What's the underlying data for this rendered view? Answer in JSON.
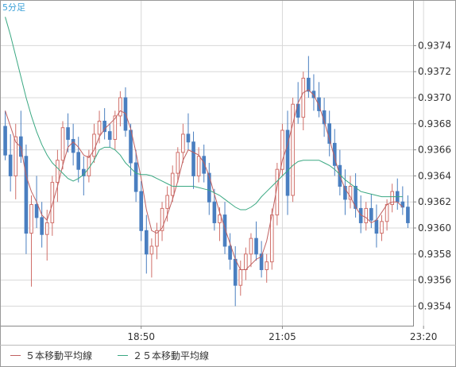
{
  "timeframe_label": "5分足",
  "chart_data": {
    "type": "candlestick",
    "x_tick_labels": [
      "18:50",
      "21:05",
      "23:20"
    ],
    "x_tick_positions": [
      26,
      53,
      80
    ],
    "ylim": [
      0.93525,
      0.93775
    ],
    "y_ticks": [
      "0.9354",
      "0.9356",
      "0.9358",
      "0.9360",
      "0.9362",
      "0.9364",
      "0.9366",
      "0.9368",
      "0.9370",
      "0.9372",
      "0.9374"
    ],
    "grid": true,
    "legend_position": "bottom-left",
    "colors": {
      "up": "#d0706a",
      "down": "#4a7fc0",
      "ma5": "#c06060",
      "ma25": "#3aa882",
      "grid": "#d8d8d8"
    },
    "candles": [
      [
        0.93678,
        0.9369,
        0.93652,
        0.93656
      ],
      [
        0.93656,
        0.93672,
        0.93628,
        0.9364
      ],
      [
        0.9364,
        0.9368,
        0.93622,
        0.9367
      ],
      [
        0.9367,
        0.9369,
        0.9365,
        0.93655
      ],
      [
        0.93655,
        0.93664,
        0.9358,
        0.93596
      ],
      [
        0.93596,
        0.93625,
        0.93555,
        0.93618
      ],
      [
        0.93618,
        0.9364,
        0.936,
        0.93608
      ],
      [
        0.93608,
        0.9362,
        0.93585,
        0.93595
      ],
      [
        0.93595,
        0.93614,
        0.93575,
        0.93604
      ],
      [
        0.93604,
        0.9364,
        0.93594,
        0.93635
      ],
      [
        0.93635,
        0.9366,
        0.9362,
        0.93652
      ],
      [
        0.93652,
        0.93682,
        0.93645,
        0.93677
      ],
      [
        0.93677,
        0.93688,
        0.93658,
        0.93668
      ],
      [
        0.93668,
        0.9368,
        0.93648,
        0.93658
      ],
      [
        0.93658,
        0.9367,
        0.93635,
        0.93645
      ],
      [
        0.93645,
        0.93655,
        0.93625,
        0.9364
      ],
      [
        0.9364,
        0.9366,
        0.93635,
        0.93655
      ],
      [
        0.93655,
        0.9368,
        0.9365,
        0.93672
      ],
      [
        0.93672,
        0.9369,
        0.93665,
        0.93682
      ],
      [
        0.93682,
        0.93692,
        0.93668,
        0.93674
      ],
      [
        0.93674,
        0.9368,
        0.93662,
        0.93668
      ],
      [
        0.93668,
        0.9369,
        0.9366,
        0.93686
      ],
      [
        0.93686,
        0.93705,
        0.93678,
        0.937
      ],
      [
        0.937,
        0.93708,
        0.9367,
        0.93675
      ],
      [
        0.93675,
        0.9368,
        0.9364,
        0.9365
      ],
      [
        0.9365,
        0.9366,
        0.9362,
        0.93628
      ],
      [
        0.93628,
        0.93636,
        0.9359,
        0.93598
      ],
      [
        0.93598,
        0.9361,
        0.93565,
        0.9358
      ],
      [
        0.9358,
        0.93592,
        0.93562,
        0.93586
      ],
      [
        0.93586,
        0.93604,
        0.93576,
        0.93598
      ],
      [
        0.93598,
        0.9362,
        0.9359,
        0.93615
      ],
      [
        0.93615,
        0.93632,
        0.93605,
        0.93625
      ],
      [
        0.93625,
        0.93648,
        0.9362,
        0.93642
      ],
      [
        0.93642,
        0.93662,
        0.93635,
        0.93658
      ],
      [
        0.93658,
        0.9368,
        0.9365,
        0.93672
      ],
      [
        0.93672,
        0.93688,
        0.9366,
        0.93666
      ],
      [
        0.93666,
        0.93674,
        0.9363,
        0.9364
      ],
      [
        0.9364,
        0.93662,
        0.93635,
        0.93655
      ],
      [
        0.93655,
        0.93664,
        0.93635,
        0.93642
      ],
      [
        0.93642,
        0.9365,
        0.9361,
        0.9362
      ],
      [
        0.9362,
        0.9363,
        0.93598,
        0.93604
      ],
      [
        0.93604,
        0.93616,
        0.9359,
        0.9361
      ],
      [
        0.9361,
        0.9362,
        0.9358,
        0.93586
      ],
      [
        0.93586,
        0.93596,
        0.93568,
        0.93576
      ],
      [
        0.93576,
        0.93586,
        0.9354,
        0.93556
      ],
      [
        0.93556,
        0.93575,
        0.93548,
        0.93568
      ],
      [
        0.93568,
        0.93585,
        0.9356,
        0.9358
      ],
      [
        0.9358,
        0.93596,
        0.9357,
        0.93592
      ],
      [
        0.93592,
        0.93605,
        0.93575,
        0.9358
      ],
      [
        0.9358,
        0.9359,
        0.93562,
        0.93568
      ],
      [
        0.93568,
        0.9358,
        0.93558,
        0.93574
      ],
      [
        0.93574,
        0.93615,
        0.93568,
        0.9361
      ],
      [
        0.9361,
        0.9365,
        0.93602,
        0.93645
      ],
      [
        0.93645,
        0.9368,
        0.9364,
        0.93675
      ],
      [
        0.93675,
        0.9369,
        0.9361,
        0.93625
      ],
      [
        0.93625,
        0.937,
        0.9362,
        0.93695
      ],
      [
        0.93695,
        0.93712,
        0.9368,
        0.93685
      ],
      [
        0.93685,
        0.9372,
        0.93675,
        0.93715
      ],
      [
        0.93715,
        0.93732,
        0.937,
        0.93705
      ],
      [
        0.93705,
        0.93718,
        0.9369,
        0.937
      ],
      [
        0.937,
        0.93712,
        0.93685,
        0.9369
      ],
      [
        0.9369,
        0.937,
        0.9367,
        0.9368
      ],
      [
        0.9368,
        0.9369,
        0.93655,
        0.93665
      ],
      [
        0.93665,
        0.93676,
        0.9364,
        0.93648
      ],
      [
        0.93648,
        0.9366,
        0.93625,
        0.93632
      ],
      [
        0.93632,
        0.93645,
        0.9361,
        0.93622
      ],
      [
        0.93622,
        0.9364,
        0.93615,
        0.93632
      ],
      [
        0.93632,
        0.93642,
        0.93608,
        0.93615
      ],
      [
        0.93615,
        0.93625,
        0.93596,
        0.93604
      ],
      [
        0.93604,
        0.9362,
        0.93598,
        0.93615
      ],
      [
        0.93615,
        0.93626,
        0.936,
        0.93606
      ],
      [
        0.93606,
        0.93618,
        0.93585,
        0.93596
      ],
      [
        0.93596,
        0.9361,
        0.9359,
        0.93605
      ],
      [
        0.93605,
        0.93622,
        0.93598,
        0.93618
      ],
      [
        0.93618,
        0.93634,
        0.93612,
        0.93628
      ],
      [
        0.93628,
        0.93638,
        0.93614,
        0.9362
      ],
      [
        0.9362,
        0.93632,
        0.9361,
        0.93616
      ],
      [
        0.93616,
        0.93625,
        0.936,
        0.93604
      ]
    ],
    "series": [
      {
        "name": "５本移動平均線",
        "color": "#c06060",
        "values": [
          0.9369,
          0.93678,
          0.93666,
          0.93662,
          0.9364,
          0.93628,
          0.9362,
          0.9361,
          0.93606,
          0.93618,
          0.93632,
          0.93648,
          0.93662,
          0.93666,
          0.93662,
          0.93656,
          0.93654,
          0.9366,
          0.9367,
          0.93676,
          0.9368,
          0.93684,
          0.9369,
          0.93688,
          0.93676,
          0.93658,
          0.93638,
          0.93614,
          0.93598,
          0.93596,
          0.936,
          0.9361,
          0.93622,
          0.93636,
          0.93652,
          0.9366,
          0.93658,
          0.93656,
          0.9365,
          0.9364,
          0.93626,
          0.93612,
          0.936,
          0.93588,
          0.93576,
          0.93568,
          0.93568,
          0.93572,
          0.93576,
          0.93578,
          0.9359,
          0.9361,
          0.93632,
          0.93652,
          0.93664,
          0.9368,
          0.93696,
          0.93704,
          0.93706,
          0.93702,
          0.93694,
          0.93682,
          0.93668,
          0.93654,
          0.9364,
          0.9363,
          0.93624,
          0.93616,
          0.9361,
          0.93608,
          0.93604,
          0.93606,
          0.93612,
          0.93618,
          0.9362,
          0.9362,
          0.93616
        ]
      },
      {
        "name": "２５本移動平均線",
        "color": "#3aa882",
        "values": [
          0.93762,
          0.93748,
          0.93732,
          0.93716,
          0.937,
          0.93686,
          0.93674,
          0.93664,
          0.93656,
          0.9365,
          0.93646,
          0.93642,
          0.93638,
          0.93636,
          0.93638,
          0.93641,
          0.93646,
          0.93652,
          0.9366,
          0.93662,
          0.93662,
          0.9366,
          0.93656,
          0.9365,
          0.93646,
          0.93642,
          0.93641,
          0.93641,
          0.9364,
          0.93638,
          0.93636,
          0.93634,
          0.93632,
          0.93632,
          0.93632,
          0.93632,
          0.93632,
          0.93631,
          0.9363,
          0.93629,
          0.93627,
          0.93625,
          0.93622,
          0.93619,
          0.93616,
          0.93614,
          0.93614,
          0.93616,
          0.93619,
          0.93624,
          0.93628,
          0.93632,
          0.93636,
          0.9364,
          0.93644,
          0.93648,
          0.93651,
          0.93652,
          0.93652,
          0.93652,
          0.93652,
          0.9365,
          0.93648,
          0.93645,
          0.93641,
          0.93637,
          0.93634,
          0.93631,
          0.93628,
          0.93627,
          0.93626,
          0.93625,
          0.93624,
          0.93624,
          0.93624,
          0.93624,
          0.93624
        ]
      }
    ]
  },
  "legend": [
    {
      "label": "５本移動平均線",
      "color": "#c06060"
    },
    {
      "label": "２５本移動平均線",
      "color": "#3aa882"
    }
  ]
}
